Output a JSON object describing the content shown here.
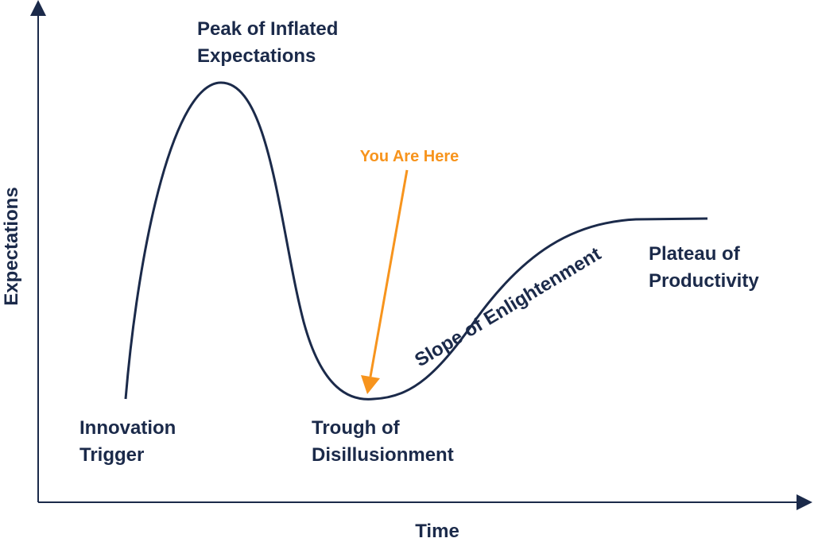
{
  "axes": {
    "y_label": "Expectations",
    "x_label": "Time"
  },
  "phases": [
    {
      "lines": [
        "Innovation",
        "Trigger"
      ]
    },
    {
      "lines": [
        "Peak of Inflated",
        "Expectations"
      ]
    },
    {
      "lines": [
        "Trough of",
        "Disillusionment"
      ]
    },
    {
      "lines": [
        "Slope of Enlightenment"
      ]
    },
    {
      "lines": [
        "Plateau of",
        "Productivity"
      ]
    }
  ],
  "marker": {
    "label": "You Are Here"
  }
}
